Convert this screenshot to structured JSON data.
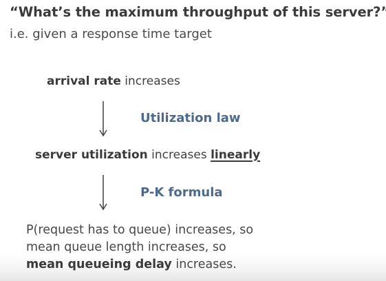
{
  "slide": {
    "title": "“What’s the maximum throughput of this server?”",
    "subtitle": "i.e. given a response time target",
    "step1": {
      "bold": "arrival rate",
      "rest": " increases"
    },
    "arrow1_label": "Utilization law",
    "step2": {
      "bold": "server utilization",
      "rest": " increases ",
      "emph": "linearly"
    },
    "arrow2_label": "P-K formula",
    "result_lines": [
      "P(request has to queue) increases, so",
      "mean queue length increases, so"
    ],
    "result_last": {
      "bold": "mean queueing delay",
      "rest": " increases."
    },
    "accent_color": "#4d6a8a"
  }
}
